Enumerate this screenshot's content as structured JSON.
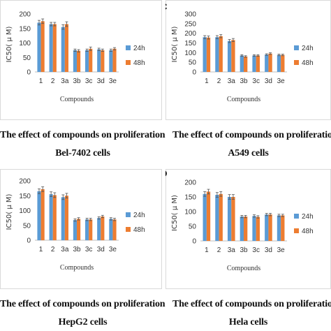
{
  "colors": {
    "series_24h": "#5b9bd5",
    "series_48h": "#ed7d31",
    "error_bar": "#555555",
    "axis": "#bfbfbf"
  },
  "chart_data": [
    {
      "type": "bar",
      "panel_letter": "",
      "categories": [
        "1",
        "2",
        "3a",
        "3b",
        "3c",
        "3d",
        "3e"
      ],
      "series": [
        {
          "name": "24h",
          "values": [
            170,
            165,
            155,
            75,
            75,
            78,
            75
          ],
          "errors": [
            8,
            6,
            8,
            4,
            4,
            4,
            4
          ]
        },
        {
          "name": "48h",
          "values": [
            175,
            165,
            165,
            73,
            80,
            75,
            80
          ],
          "errors": [
            8,
            6,
            8,
            4,
            6,
            4,
            4
          ]
        }
      ],
      "ylabel": "IC50( μ M)",
      "xlabel": "Compounds",
      "ylim": [
        0,
        200
      ],
      "yticks": [
        "0",
        "50",
        "100",
        "150",
        "200"
      ],
      "legend_position": "right",
      "caption_line1": "The effect of compounds on proliferation of",
      "caption_line2": "Bel-7402 cells"
    },
    {
      "type": "bar",
      "panel_letter": "C",
      "categories": [
        "1",
        "2",
        "3a",
        "3b",
        "3c",
        "3d",
        "3e"
      ],
      "series": [
        {
          "name": "24h",
          "values": [
            180,
            180,
            160,
            85,
            85,
            90,
            88
          ],
          "errors": [
            8,
            8,
            8,
            4,
            4,
            4,
            4
          ]
        },
        {
          "name": "48h",
          "values": [
            178,
            185,
            165,
            80,
            85,
            95,
            88
          ],
          "errors": [
            8,
            8,
            8,
            4,
            4,
            4,
            4
          ]
        }
      ],
      "ylabel": "IC50( μ M)",
      "xlabel": "Compounds",
      "ylim": [
        0,
        300
      ],
      "yticks": [
        "0",
        "50",
        "100",
        "150",
        "200",
        "250",
        "300"
      ],
      "legend_position": "right",
      "caption_line1": "The effect of compounds on proliferation of",
      "caption_line2": "A549 cells"
    },
    {
      "type": "bar",
      "panel_letter": "",
      "categories": [
        "1",
        "2",
        "3a",
        "3b",
        "3c",
        "3d",
        "3e"
      ],
      "series": [
        {
          "name": "24h",
          "values": [
            165,
            155,
            145,
            68,
            70,
            75,
            72
          ],
          "errors": [
            8,
            8,
            8,
            4,
            4,
            4,
            4
          ]
        },
        {
          "name": "48h",
          "values": [
            172,
            152,
            150,
            72,
            70,
            80,
            70
          ],
          "errors": [
            8,
            8,
            8,
            4,
            4,
            4,
            4
          ]
        }
      ],
      "ylabel": "IC50( μ M)",
      "xlabel": "Compounds",
      "ylim": [
        0,
        200
      ],
      "yticks": [
        "0",
        "50",
        "100",
        "150",
        "200"
      ],
      "legend_position": "right",
      "caption_line1": "The effect of compounds on proliferation of",
      "caption_line2": "HepG2 cells"
    },
    {
      "type": "bar",
      "panel_letter": "D",
      "categories": [
        "1",
        "2",
        "3a",
        "3b",
        "3c",
        "3d",
        "3e"
      ],
      "series": [
        {
          "name": "24h",
          "values": [
            160,
            157,
            150,
            83,
            85,
            90,
            87
          ],
          "errors": [
            8,
            8,
            8,
            4,
            4,
            4,
            4
          ]
        },
        {
          "name": "48h",
          "values": [
            168,
            160,
            150,
            83,
            82,
            90,
            87
          ],
          "errors": [
            8,
            8,
            8,
            4,
            4,
            4,
            4
          ]
        }
      ],
      "ylabel": "IC50( μ M)",
      "xlabel": "Compounds",
      "ylim": [
        0,
        200
      ],
      "yticks": [
        "0",
        "50",
        "100",
        "150",
        "200"
      ],
      "legend_position": "right",
      "caption_line1": "The effect of compounds on proliferation of",
      "caption_line2": "Hela cells"
    }
  ]
}
